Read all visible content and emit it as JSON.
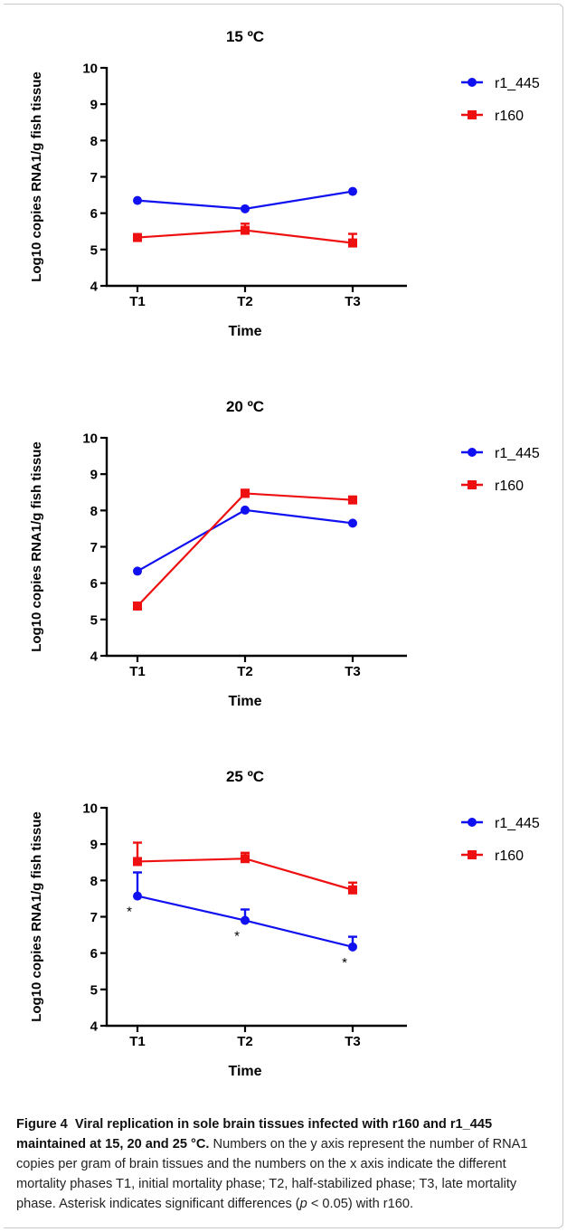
{
  "chart_data": [
    {
      "type": "line",
      "title": "15 ºC",
      "xlabel": "Time",
      "ylabel": "Log10 copies  RNA1/g fish tissue",
      "categories": [
        "T1",
        "T2",
        "T3"
      ],
      "ylim": [
        4,
        10
      ],
      "yticks": [
        "4",
        "5",
        "6",
        "7",
        "8",
        "9",
        "10"
      ],
      "legend_position": "top-right",
      "series": [
        {
          "name": "r1_445",
          "color": "#1010f0",
          "marker": "circle",
          "values": [
            6.35,
            6.12,
            6.6
          ],
          "err": [
            0.02,
            0.02,
            0.02
          ],
          "annotations": [
            "",
            "",
            ""
          ]
        },
        {
          "name": "r160",
          "color": "#ee1010",
          "marker": "square",
          "values": [
            5.33,
            5.53,
            5.18
          ],
          "err": [
            0.05,
            0.18,
            0.25
          ],
          "annotations": [
            "",
            "",
            ""
          ]
        }
      ]
    },
    {
      "type": "line",
      "title": "20 ºC",
      "xlabel": "Time",
      "ylabel": "Log10 copies  RNA1/g fish tissue",
      "categories": [
        "T1",
        "T2",
        "T3"
      ],
      "ylim": [
        4,
        10
      ],
      "yticks": [
        "4",
        "5",
        "6",
        "7",
        "8",
        "9",
        "10"
      ],
      "legend_position": "top-right",
      "series": [
        {
          "name": "r1_445",
          "color": "#1010f0",
          "marker": "circle",
          "values": [
            6.33,
            8.01,
            7.65
          ],
          "err": [
            0.02,
            0.02,
            0.02
          ],
          "annotations": [
            "",
            "",
            ""
          ]
        },
        {
          "name": "r160",
          "color": "#ee1010",
          "marker": "square",
          "values": [
            5.37,
            8.47,
            8.29
          ],
          "err": [
            0.02,
            0.1,
            0.06
          ],
          "annotations": [
            "",
            "",
            ""
          ]
        }
      ]
    },
    {
      "type": "line",
      "title": "25 ºC",
      "xlabel": "Time",
      "ylabel": "Log10 copies RNA1/g fish tissue",
      "categories": [
        "T1",
        "T2",
        "T3"
      ],
      "ylim": [
        4,
        10
      ],
      "yticks": [
        "4",
        "5",
        "6",
        "7",
        "8",
        "9",
        "10"
      ],
      "legend_position": "top-right",
      "series": [
        {
          "name": "r1_445",
          "color": "#1010f0",
          "marker": "circle",
          "values": [
            7.57,
            6.9,
            6.17
          ],
          "err": [
            0.65,
            0.3,
            0.28
          ],
          "annotations": [
            "*",
            "*",
            "*"
          ]
        },
        {
          "name": "r160",
          "color": "#ee1010",
          "marker": "square",
          "values": [
            8.52,
            8.6,
            7.74
          ],
          "err": [
            0.52,
            0.16,
            0.2
          ],
          "annotations": [
            "",
            "",
            ""
          ]
        }
      ]
    }
  ],
  "caption": {
    "label": "Figure 4",
    "title": "Viral replication in sole brain tissues infected with r160 and r1_445 maintained at 15, 20 and 25 °C.",
    "text_a": " Numbers on the y axis represent the number of RNA1 copies per gram of brain tissues and the numbers on the x axis indicate the different mortality phases T1, initial mortality phase; T2, half-stabilized phase; T3, late mortality phase. Asterisk indicates significant differences (",
    "p_symbol": "p",
    "text_b": " < 0.05) with r160."
  }
}
